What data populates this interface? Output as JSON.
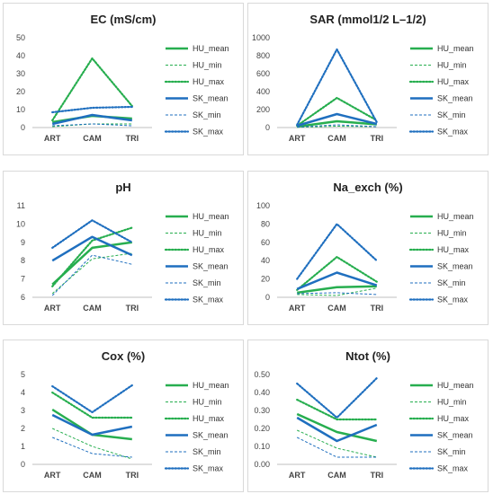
{
  "chart_data": [
    {
      "type": "line",
      "title": "EC (mS/cm)",
      "categories": [
        "ART",
        "CAM",
        "TRI"
      ],
      "ylim": [
        0,
        50
      ],
      "yticks": [
        0,
        10,
        20,
        30,
        40,
        50
      ],
      "tick_decimals": 0,
      "series": [
        {
          "name": "HU_mean",
          "values": [
            3,
            6.5,
            5
          ],
          "color": "#27ae4f",
          "style": "solid"
        },
        {
          "name": "HU_min",
          "values": [
            0.5,
            2,
            2
          ],
          "color": "#27ae4f",
          "style": "dash"
        },
        {
          "name": "HU_max",
          "values": [
            4,
            38.5,
            12
          ],
          "color": "#27ae4f",
          "style": "dot"
        },
        {
          "name": "SK_mean",
          "values": [
            2,
            7,
            4
          ],
          "color": "#1f6fbf",
          "style": "solid"
        },
        {
          "name": "SK_min",
          "values": [
            1,
            2,
            1
          ],
          "color": "#1f6fbf",
          "style": "dash"
        },
        {
          "name": "SK_max",
          "values": [
            8.5,
            11,
            11.5
          ],
          "color": "#1f6fbf",
          "style": "dot"
        }
      ]
    },
    {
      "type": "line",
      "title": "SAR (mmol1/2 L–1/2)",
      "categories": [
        "ART",
        "CAM",
        "TRI"
      ],
      "ylim": [
        0,
        1000
      ],
      "yticks": [
        0,
        200,
        400,
        600,
        800,
        1000
      ],
      "tick_decimals": 0,
      "series": [
        {
          "name": "HU_mean",
          "values": [
            10,
            70,
            35
          ],
          "color": "#27ae4f",
          "style": "solid"
        },
        {
          "name": "HU_min",
          "values": [
            3,
            15,
            10
          ],
          "color": "#27ae4f",
          "style": "dash"
        },
        {
          "name": "HU_max",
          "values": [
            20,
            330,
            80
          ],
          "color": "#27ae4f",
          "style": "dot"
        },
        {
          "name": "SK_mean",
          "values": [
            20,
            150,
            40
          ],
          "color": "#1f6fbf",
          "style": "solid"
        },
        {
          "name": "SK_min",
          "values": [
            5,
            30,
            10
          ],
          "color": "#1f6fbf",
          "style": "dash"
        },
        {
          "name": "SK_max",
          "values": [
            30,
            870,
            60
          ],
          "color": "#1f6fbf",
          "style": "dot"
        }
      ]
    },
    {
      "type": "line",
      "title": "pH",
      "categories": [
        "ART",
        "CAM",
        "TRI"
      ],
      "ylim": [
        6,
        11
      ],
      "yticks": [
        6,
        7,
        8,
        9,
        10,
        11
      ],
      "tick_decimals": 0,
      "series": [
        {
          "name": "HU_mean",
          "values": [
            6.7,
            8.7,
            9.0
          ],
          "color": "#27ae4f",
          "style": "solid"
        },
        {
          "name": "HU_min",
          "values": [
            6.2,
            8.1,
            8.4
          ],
          "color": "#27ae4f",
          "style": "dash"
        },
        {
          "name": "HU_max",
          "values": [
            6.6,
            9.1,
            9.8
          ],
          "color": "#27ae4f",
          "style": "dot"
        },
        {
          "name": "SK_mean",
          "values": [
            8.0,
            9.3,
            8.3
          ],
          "color": "#1f6fbf",
          "style": "solid"
        },
        {
          "name": "SK_min",
          "values": [
            6.1,
            8.3,
            7.8
          ],
          "color": "#1f6fbf",
          "style": "dash"
        },
        {
          "name": "SK_max",
          "values": [
            8.7,
            10.2,
            9.0
          ],
          "color": "#1f6fbf",
          "style": "dot"
        }
      ]
    },
    {
      "type": "line",
      "title": "Na_exch (%)",
      "categories": [
        "ART",
        "CAM",
        "TRI"
      ],
      "ylim": [
        0,
        100
      ],
      "yticks": [
        0,
        20,
        40,
        60,
        80,
        100
      ],
      "tick_decimals": 0,
      "series": [
        {
          "name": "HU_mean",
          "values": [
            5,
            11,
            12
          ],
          "color": "#27ae4f",
          "style": "solid"
        },
        {
          "name": "HU_min",
          "values": [
            3,
            2,
            10
          ],
          "color": "#27ae4f",
          "style": "dash"
        },
        {
          "name": "HU_max",
          "values": [
            8,
            44,
            17
          ],
          "color": "#27ae4f",
          "style": "dot"
        },
        {
          "name": "SK_mean",
          "values": [
            9,
            27,
            13
          ],
          "color": "#1f6fbf",
          "style": "solid"
        },
        {
          "name": "SK_min",
          "values": [
            4,
            5,
            3
          ],
          "color": "#1f6fbf",
          "style": "dash"
        },
        {
          "name": "SK_max",
          "values": [
            20,
            80,
            40
          ],
          "color": "#1f6fbf",
          "style": "dot"
        }
      ]
    },
    {
      "type": "line",
      "title": "Cox (%)",
      "categories": [
        "ART",
        "CAM",
        "TRI"
      ],
      "ylim": [
        0,
        5
      ],
      "yticks": [
        0,
        1,
        2,
        3,
        4,
        5
      ],
      "tick_decimals": 0,
      "series": [
        {
          "name": "HU_mean",
          "values": [
            3.05,
            1.65,
            1.4
          ],
          "color": "#27ae4f",
          "style": "solid"
        },
        {
          "name": "HU_min",
          "values": [
            2.0,
            1.0,
            0.3
          ],
          "color": "#27ae4f",
          "style": "dash"
        },
        {
          "name": "HU_max",
          "values": [
            4.0,
            2.6,
            2.6
          ],
          "color": "#27ae4f",
          "style": "dot"
        },
        {
          "name": "SK_mean",
          "values": [
            2.75,
            1.65,
            2.1
          ],
          "color": "#1f6fbf",
          "style": "solid"
        },
        {
          "name": "SK_min",
          "values": [
            1.5,
            0.6,
            0.4
          ],
          "color": "#1f6fbf",
          "style": "dash"
        },
        {
          "name": "SK_max",
          "values": [
            4.35,
            2.9,
            4.4
          ],
          "color": "#1f6fbf",
          "style": "dot"
        }
      ]
    },
    {
      "type": "line",
      "title": "Ntot (%)",
      "categories": [
        "ART",
        "CAM",
        "TRI"
      ],
      "ylim": [
        0,
        0.5
      ],
      "yticks": [
        0,
        0.1,
        0.2,
        0.3,
        0.4,
        0.5
      ],
      "tick_decimals": 2,
      "series": [
        {
          "name": "HU_mean",
          "values": [
            0.28,
            0.18,
            0.13
          ],
          "color": "#27ae4f",
          "style": "solid"
        },
        {
          "name": "HU_min",
          "values": [
            0.19,
            0.09,
            0.04
          ],
          "color": "#27ae4f",
          "style": "dash"
        },
        {
          "name": "HU_max",
          "values": [
            0.36,
            0.25,
            0.25
          ],
          "color": "#27ae4f",
          "style": "dot"
        },
        {
          "name": "SK_mean",
          "values": [
            0.26,
            0.13,
            0.22
          ],
          "color": "#1f6fbf",
          "style": "solid"
        },
        {
          "name": "SK_min",
          "values": [
            0.15,
            0.04,
            0.04
          ],
          "color": "#1f6fbf",
          "style": "dash"
        },
        {
          "name": "SK_max",
          "values": [
            0.45,
            0.26,
            0.48
          ],
          "color": "#1f6fbf",
          "style": "dot"
        }
      ]
    }
  ]
}
